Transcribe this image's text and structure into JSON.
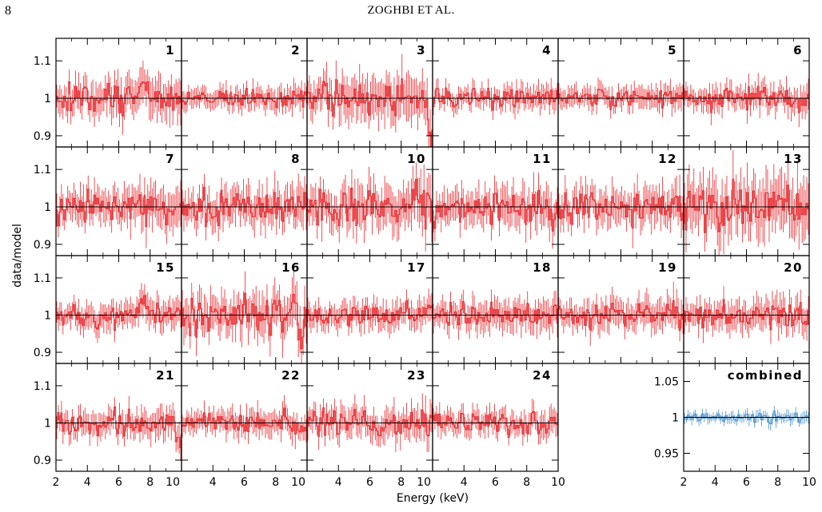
{
  "header": {
    "page_number": "8",
    "running_head": "ZOGHBI ET AL."
  },
  "colors": {
    "individual": "#e8262b",
    "combined": "#4a8fc8",
    "model": "#000000"
  },
  "chart_data": {
    "type": "line",
    "description": "Grid of data/model ratio residual spectra vs energy",
    "xlabel": "Energy (keV)",
    "ylabel": "data/model",
    "xlim": [
      2,
      10
    ],
    "xticks_major": [
      2,
      4,
      6,
      8,
      10
    ],
    "xticks_labeled_first_col": [
      "2",
      "4",
      "6",
      "8",
      "10"
    ],
    "xticks_labeled_other_cols": [
      "4",
      "6",
      "8",
      "10"
    ],
    "ylim": [
      0.87,
      1.16
    ],
    "yticks": [
      "1.1",
      "1",
      "0.9"
    ],
    "model_line": 1.0,
    "panels": [
      {
        "label": "1",
        "row": 0,
        "col": 0,
        "scatter": 0.03,
        "feature": {
          "x": 7.6,
          "dy": 0.06
        }
      },
      {
        "label": "2",
        "row": 0,
        "col": 1,
        "scatter": 0.018
      },
      {
        "label": "3",
        "row": 0,
        "col": 2,
        "scatter": 0.035,
        "feature": {
          "x": 9.9,
          "dy": -0.1
        }
      },
      {
        "label": "4",
        "row": 0,
        "col": 3,
        "scatter": 0.018
      },
      {
        "label": "5",
        "row": 0,
        "col": 4,
        "scatter": 0.018
      },
      {
        "label": "6",
        "row": 0,
        "col": 5,
        "scatter": 0.02
      },
      {
        "label": "7",
        "row": 1,
        "col": 0,
        "scatter": 0.03
      },
      {
        "label": "8",
        "row": 1,
        "col": 1,
        "scatter": 0.03
      },
      {
        "label": "10",
        "row": 1,
        "col": 2,
        "scatter": 0.035,
        "feature": {
          "x": 8.8,
          "dy": 0.06
        }
      },
      {
        "label": "11",
        "row": 1,
        "col": 3,
        "scatter": 0.03,
        "feature": {
          "x": 9.6,
          "dy": -0.06
        }
      },
      {
        "label": "12",
        "row": 1,
        "col": 4,
        "scatter": 0.03
      },
      {
        "label": "13",
        "row": 1,
        "col": 5,
        "scatter": 0.045
      },
      {
        "label": "15",
        "row": 2,
        "col": 0,
        "scatter": 0.022,
        "feature": {
          "x": 7.6,
          "dy": 0.06
        }
      },
      {
        "label": "16",
        "row": 2,
        "col": 1,
        "scatter": 0.035,
        "feature": {
          "x": 9.6,
          "dy": -0.08
        }
      },
      {
        "label": "17",
        "row": 2,
        "col": 2,
        "scatter": 0.022
      },
      {
        "label": "18",
        "row": 2,
        "col": 3,
        "scatter": 0.025
      },
      {
        "label": "19",
        "row": 2,
        "col": 4,
        "scatter": 0.025
      },
      {
        "label": "20",
        "row": 2,
        "col": 5,
        "scatter": 0.025
      },
      {
        "label": "21",
        "row": 3,
        "col": 0,
        "scatter": 0.022,
        "feature": {
          "x": 9.8,
          "dy": -0.05
        }
      },
      {
        "label": "22",
        "row": 3,
        "col": 1,
        "scatter": 0.02
      },
      {
        "label": "23",
        "row": 3,
        "col": 2,
        "scatter": 0.025
      },
      {
        "label": "24",
        "row": 3,
        "col": 3,
        "scatter": 0.02
      }
    ],
    "combined": {
      "label": "combined",
      "row": 3,
      "col": 5,
      "ylim": [
        0.925,
        1.075
      ],
      "yticks": [
        "1.05",
        "1",
        "0.95"
      ],
      "scatter": 0.005
    }
  }
}
